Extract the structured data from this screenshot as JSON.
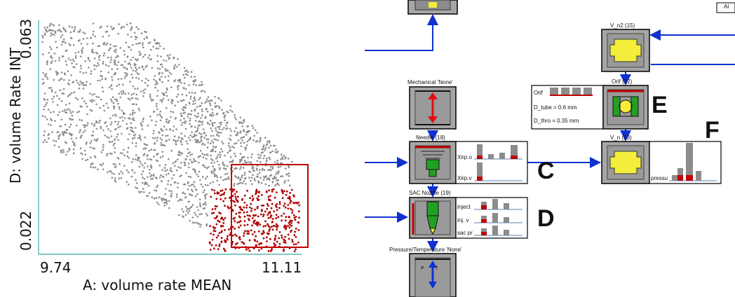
{
  "plot": {
    "x_label": "A: volume rate MEAN",
    "y_label": "D: volume Rate INT",
    "x_min_label": "9.74",
    "x_max_label": "11.11",
    "y_top_label": "0.063",
    "y_bottom_label": "0.022"
  },
  "chart_data": {
    "type": "scatter",
    "xlabel": "A: volume rate MEAN",
    "ylabel": "D: volume Rate INT",
    "xlim": [
      9.74,
      11.11
    ],
    "ylim": [
      0.022,
      0.063
    ],
    "series": [
      {
        "color": "#8c8c8c",
        "count": 2400
      },
      {
        "color": "#b00000",
        "count": 420
      }
    ],
    "selection": {
      "x_range": [
        10.62,
        11.11
      ],
      "y_range": [
        0.022,
        0.034
      ]
    }
  },
  "diagram": {
    "mechanical_label": "Mechanical 'None'",
    "needle_label": "Needle (18)",
    "sac_label": "SAC Nozzle (19)",
    "pressure_label": "Pressure/Temperature 'None'",
    "vn2_label": "V_n2 (15)",
    "orif_label": "Orif (22)",
    "vn23_label": "V_n (23)",
    "orif_text": "Orif",
    "d_tube": "D_tube = 0.6 mm",
    "d_thro": "D_thro = 0.35 mm",
    "needle_plot1": "Xirp.o",
    "needle_plot2": "Xirp.v",
    "sac_plot1": "inject",
    "sac_plot2": "inj. v",
    "sac_plot3": "sac pr",
    "vn_plot": "pressu",
    "corner_label": "Al",
    "pt_letters": "P T",
    "letter_c": "C",
    "letter_d": "D",
    "letter_e": "E",
    "letter_f": "F"
  },
  "colors": {
    "grey_points": "#8c8c8c",
    "red_points": "#b00000",
    "selection_box": "#c00000",
    "axis": "#3aa7a0",
    "wire": "#1030d0",
    "block_grey": "#a6a6a6",
    "yellow": "#f2ee3a",
    "green": "#22a022",
    "red_bar": "#c00000"
  }
}
